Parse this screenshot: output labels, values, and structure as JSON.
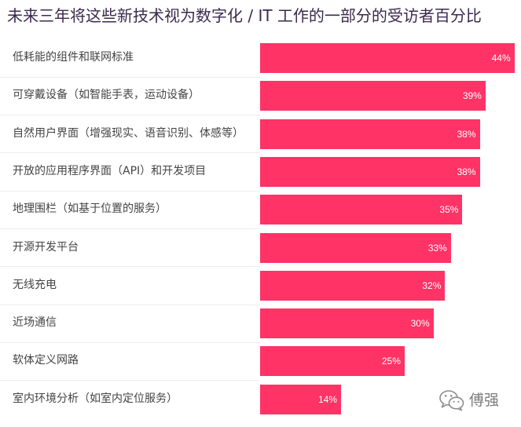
{
  "chart_data": {
    "type": "bar",
    "orientation": "horizontal",
    "title": "未来三年将这些新技术视为数字化 / IT 工作的一部分的受访者百分比",
    "categories": [
      "低耗能的组件和联网标准",
      "可穿戴设备（如智能手表，运动设备）",
      "自然用户界面（增强现实、语音识别、体感等）",
      "开放的应用程序界面（API）和开发项目",
      "地理围栏（如基于位置的服务）",
      "开源开发平台",
      "无线充电",
      "近场通信",
      "软体定义网路",
      "室内环境分析（如室内定位服务）"
    ],
    "values": [
      44,
      39,
      38,
      38,
      35,
      33,
      32,
      30,
      25,
      14
    ],
    "value_labels": [
      "44%",
      "39%",
      "38%",
      "38%",
      "35%",
      "33%",
      "32%",
      "30%",
      "25%",
      "14%"
    ],
    "xlim": [
      0,
      45
    ],
    "grid": false,
    "legend": false,
    "bar_color": "#ff3366"
  },
  "watermark": {
    "icon": "wechat-icon",
    "text": "傅强"
  },
  "colors": {
    "title": "#3b2a4d",
    "label": "#444444",
    "bar": "#ff3366",
    "value_label": "#ffffff",
    "watermark": "#7d7d7d"
  }
}
